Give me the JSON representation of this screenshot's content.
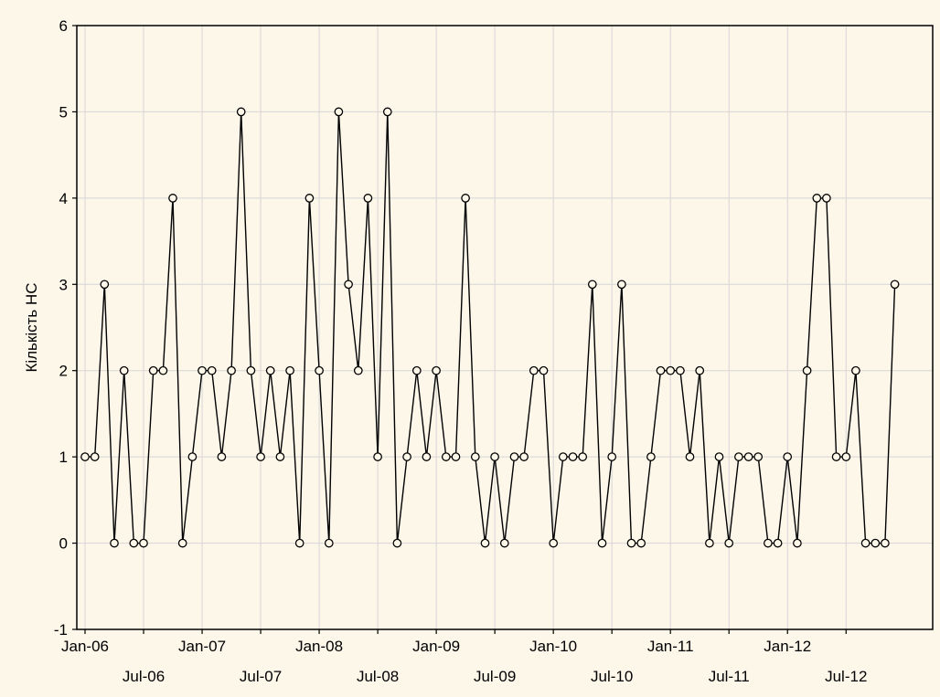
{
  "chart_data": {
    "type": "line",
    "title": "",
    "xlabel": "",
    "ylabel": "Кількість НС",
    "ylim": [
      -1,
      6
    ],
    "y_ticks": [
      -1,
      0,
      1,
      2,
      3,
      4,
      5,
      6
    ],
    "grid": true,
    "legend": "none",
    "x_start": "Jan-06",
    "x_ticks": [
      {
        "label": "Jan-06",
        "row": 1
      },
      {
        "label": "Jul-06",
        "row": 2
      },
      {
        "label": "Jan-07",
        "row": 1
      },
      {
        "label": "Jul-07",
        "row": 2
      },
      {
        "label": "Jan-08",
        "row": 1
      },
      {
        "label": "Jul-08",
        "row": 2
      },
      {
        "label": "Jan-09",
        "row": 1
      },
      {
        "label": "Jul-09",
        "row": 2
      },
      {
        "label": "Jan-10",
        "row": 1
      },
      {
        "label": "Jul-10",
        "row": 2
      },
      {
        "label": "Jan-11",
        "row": 1
      },
      {
        "label": "Jul-11",
        "row": 2
      },
      {
        "label": "Jan-12",
        "row": 1
      },
      {
        "label": "Jul-12",
        "row": 2
      }
    ],
    "series": [
      {
        "x": [
          "Jan-06",
          "Feb-06",
          "Mar-06",
          "Apr-06",
          "May-06",
          "Jun-06",
          "Jul-06",
          "Aug-06",
          "Sep-06",
          "Oct-06",
          "Nov-06",
          "Dec-06",
          "Jan-07",
          "Feb-07",
          "Mar-07",
          "Apr-07",
          "May-07",
          "Jun-07",
          "Jul-07",
          "Aug-07",
          "Sep-07",
          "Oct-07",
          "Nov-07",
          "Dec-07",
          "Jan-08",
          "Feb-08",
          "Mar-08",
          "Apr-08",
          "May-08",
          "Jun-08",
          "Jul-08",
          "Aug-08",
          "Sep-08",
          "Oct-08",
          "Nov-08",
          "Dec-08",
          "Jan-09",
          "Feb-09",
          "Mar-09",
          "Apr-09",
          "May-09",
          "Jun-09",
          "Jul-09",
          "Aug-09",
          "Sep-09",
          "Oct-09",
          "Nov-09",
          "Dec-09",
          "Jan-10",
          "Feb-10",
          "Mar-10",
          "Apr-10",
          "May-10",
          "Jun-10",
          "Jul-10",
          "Aug-10",
          "Sep-10",
          "Oct-10",
          "Nov-10",
          "Dec-10",
          "Jan-11",
          "Feb-11",
          "Mar-11",
          "Apr-11",
          "May-11",
          "Jun-11",
          "Jul-11",
          "Aug-11",
          "Sep-11",
          "Oct-11",
          "Nov-11",
          "Dec-11",
          "Jan-12",
          "Feb-12",
          "Mar-12",
          "Apr-12",
          "May-12",
          "Jun-12",
          "Jul-12",
          "Aug-12",
          "Sep-12",
          "Oct-12",
          "Nov-12",
          "Dec-12"
        ],
        "values": [
          1,
          1,
          3,
          0,
          2,
          0,
          0,
          2,
          2,
          4,
          0,
          1,
          2,
          2,
          1,
          2,
          5,
          2,
          1,
          2,
          1,
          2,
          0,
          4,
          2,
          0,
          5,
          3,
          2,
          4,
          1,
          5,
          0,
          1,
          2,
          1,
          2,
          1,
          1,
          4,
          1,
          0,
          1,
          0,
          1,
          1,
          2,
          2,
          0,
          1,
          1,
          1,
          3,
          0,
          1,
          3,
          0,
          0,
          1,
          2,
          2,
          2,
          1,
          2,
          0,
          1,
          0,
          1,
          1,
          1,
          0,
          0,
          1,
          0,
          2,
          4,
          4,
          1,
          1,
          2,
          0,
          0,
          0,
          3
        ],
        "color": "#000000",
        "marker": "circle"
      }
    ]
  }
}
